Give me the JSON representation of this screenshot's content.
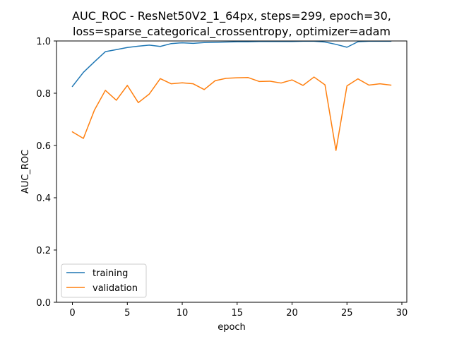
{
  "chart_data": {
    "type": "line",
    "title_line1": "AUC_ROC - ResNet50V2_1_64px, steps=299, epoch=30,",
    "title_line2": "loss=sparse_categorical_crossentropy, optimizer=adam",
    "xlabel": "epoch",
    "ylabel": "AUC_ROC",
    "xlim": [
      -1.45,
      30.45
    ],
    "ylim": [
      0.0,
      1.0
    ],
    "xticks": [
      0,
      5,
      10,
      15,
      20,
      25,
      30
    ],
    "yticks": [
      0.0,
      0.2,
      0.4,
      0.6,
      0.8,
      1.0
    ],
    "xtick_labels": [
      "0",
      "5",
      "10",
      "15",
      "20",
      "25",
      "30"
    ],
    "ytick_labels": [
      "0.0",
      "0.2",
      "0.4",
      "0.6",
      "0.8",
      "1.0"
    ],
    "grid": false,
    "legend_position": "lower-left",
    "x": [
      0,
      1,
      2,
      3,
      4,
      5,
      6,
      7,
      8,
      9,
      10,
      11,
      12,
      13,
      14,
      15,
      16,
      17,
      18,
      19,
      20,
      21,
      22,
      23,
      24,
      25,
      26,
      27,
      28,
      29
    ],
    "series": [
      {
        "name": "training",
        "color": "#1f77b4",
        "values": [
          0.826,
          0.88,
          0.92,
          0.959,
          0.967,
          0.975,
          0.98,
          0.984,
          0.979,
          0.99,
          0.993,
          0.991,
          0.994,
          0.995,
          0.996,
          0.997,
          0.997,
          0.998,
          0.998,
          0.998,
          0.998,
          0.999,
          0.999,
          0.996,
          0.987,
          0.976,
          0.997,
          0.999,
          0.999,
          0.999
        ]
      },
      {
        "name": "validation",
        "color": "#ff7f0e",
        "values": [
          0.652,
          0.627,
          0.735,
          0.811,
          0.773,
          0.83,
          0.764,
          0.797,
          0.856,
          0.836,
          0.84,
          0.836,
          0.814,
          0.848,
          0.857,
          0.859,
          0.86,
          0.845,
          0.846,
          0.839,
          0.851,
          0.83,
          0.862,
          0.832,
          0.581,
          0.828,
          0.855,
          0.831,
          0.836,
          0.831
        ]
      }
    ]
  }
}
